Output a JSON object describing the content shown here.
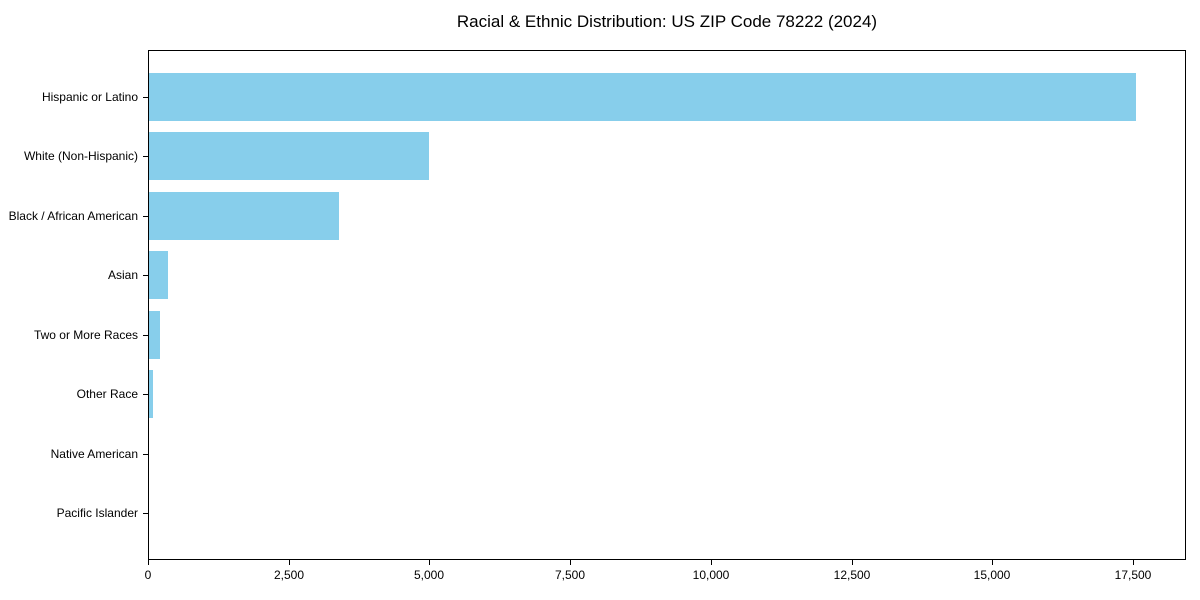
{
  "title": "Racial & Ethnic Distribution: US ZIP Code 78222 (2024)",
  "colors": {
    "bar": "#87CEEB",
    "axis": "#000000",
    "text": "#000000",
    "background": "#FFFFFF"
  },
  "chart_data": {
    "type": "bar",
    "orientation": "horizontal",
    "title": "Racial & Ethnic Distribution: US ZIP Code 78222 (2024)",
    "categories": [
      "Hispanic or Latino",
      "White (Non-Hispanic)",
      "Black / African American",
      "Asian",
      "Two or More Races",
      "Other Race",
      "Native American",
      "Pacific Islander"
    ],
    "values": [
      17560,
      4990,
      3390,
      330,
      190,
      70,
      0,
      0
    ],
    "bar_color": "#87CEEB",
    "xlabel": "",
    "ylabel": "",
    "xlim": [
      0,
      18440
    ],
    "xticks": [
      0,
      2500,
      5000,
      7500,
      10000,
      12500,
      15000,
      17500
    ],
    "xtick_labels": [
      "0",
      "2,500",
      "5,000",
      "7,500",
      "10,000",
      "12,500",
      "15,000",
      "17,500"
    ],
    "grid": false,
    "legend": "none",
    "frame": "full-box"
  }
}
